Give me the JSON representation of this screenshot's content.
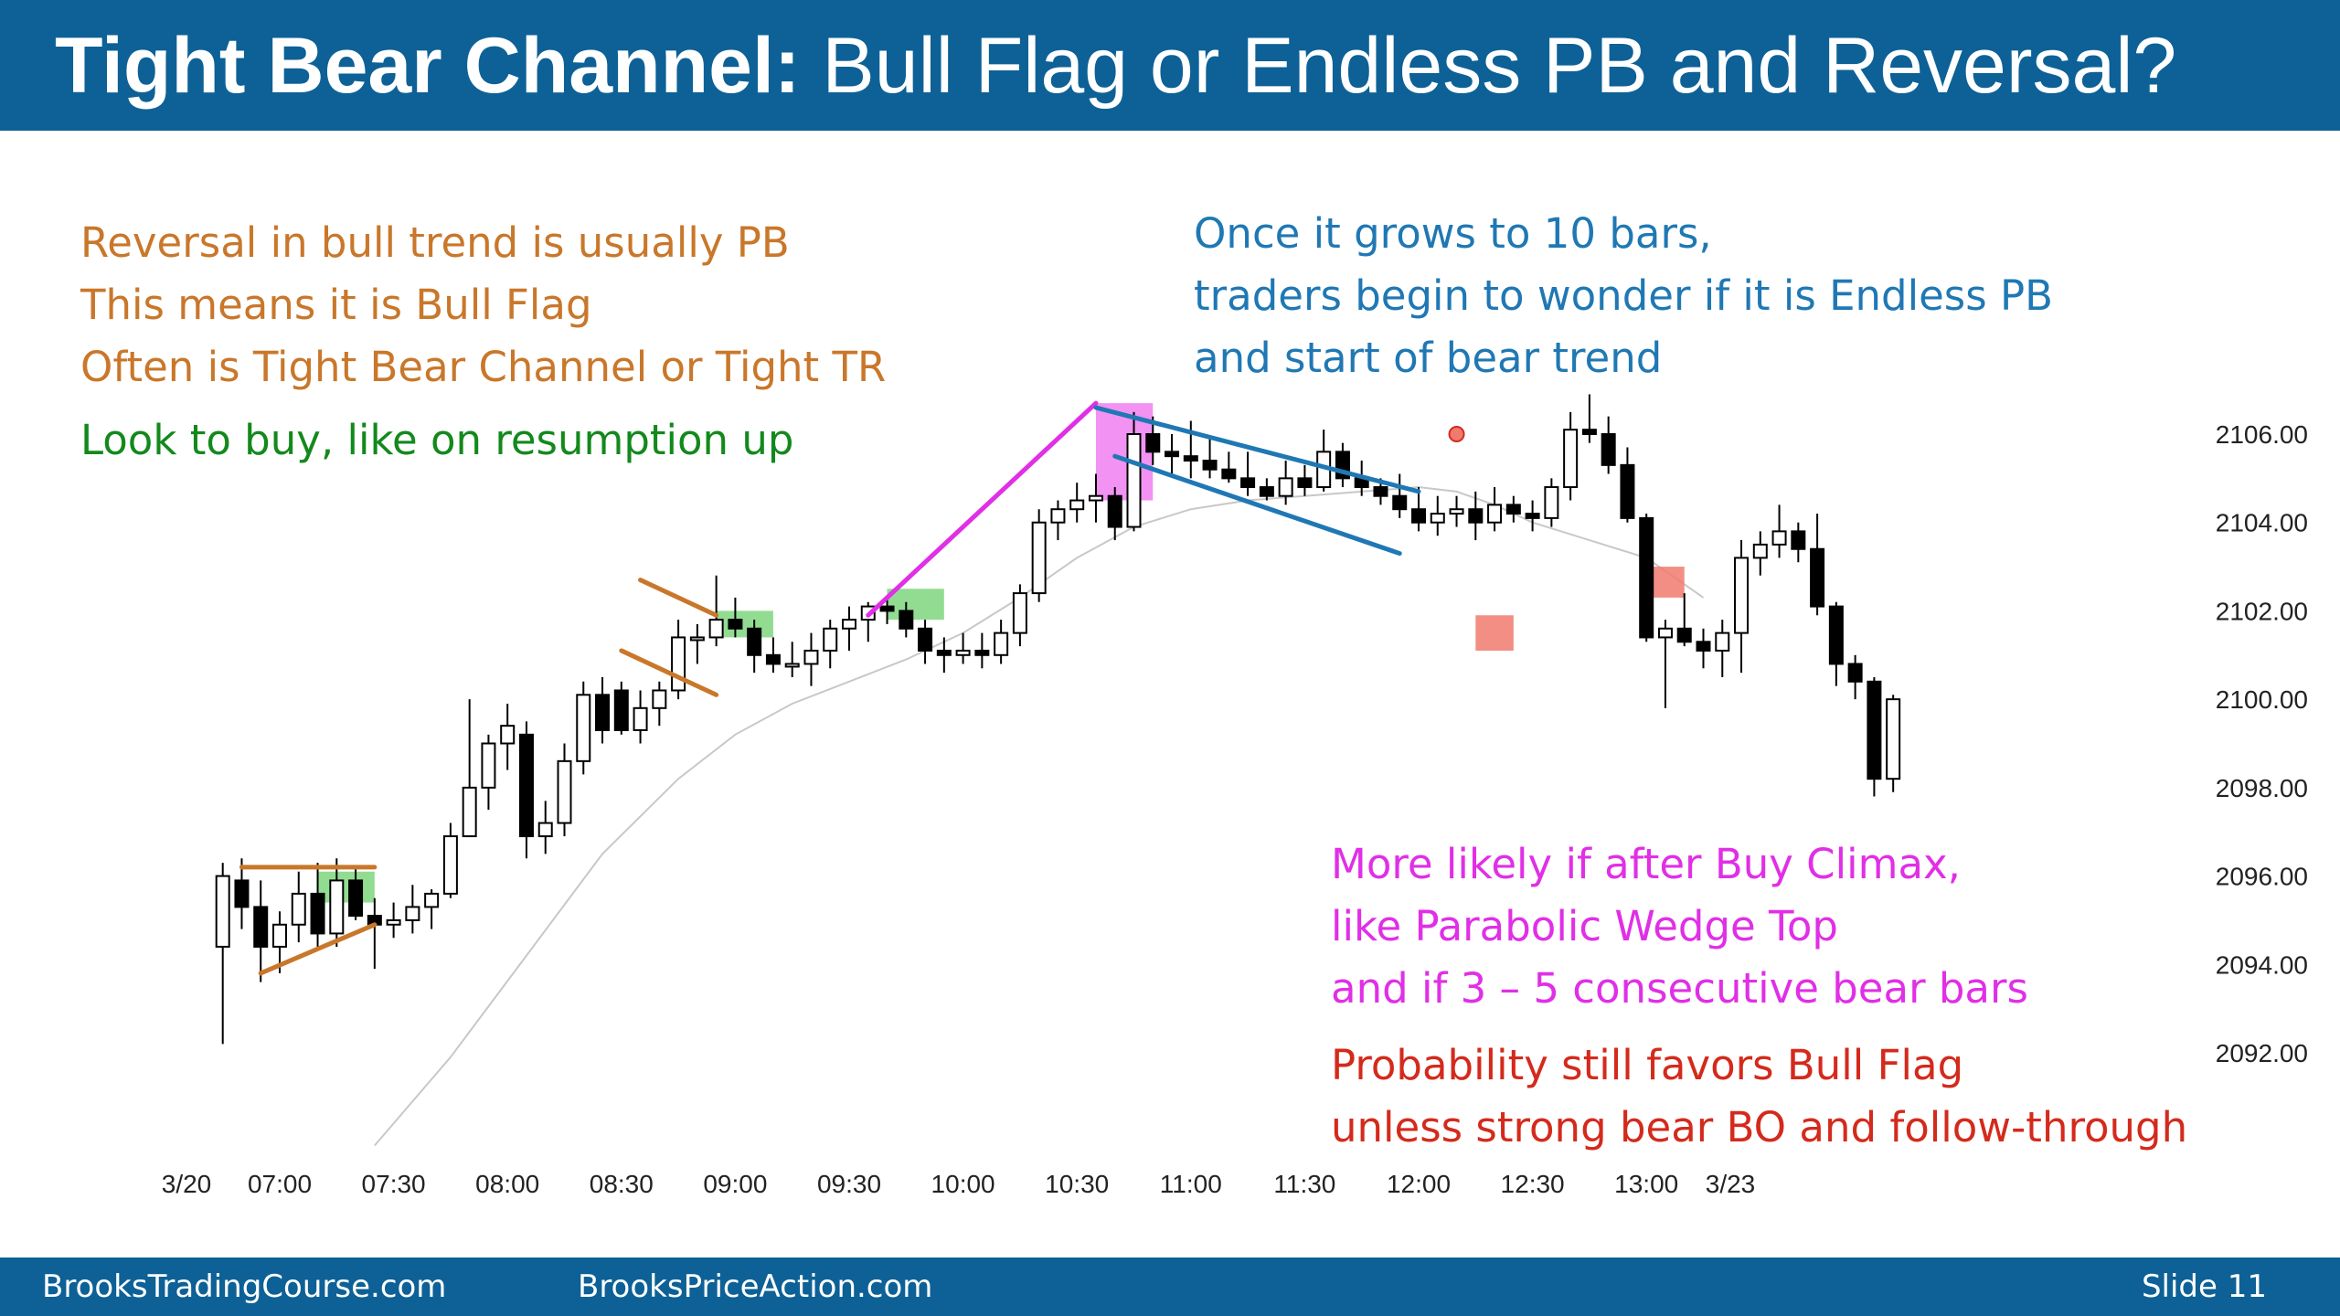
{
  "title": {
    "bold": "Tight Bear Channel:",
    "rest": " Bull Flag or Endless PB and Reversal?"
  },
  "notes": {
    "orange": [
      "Reversal in bull trend is usually PB",
      "This means it is Bull Flag",
      "Often is Tight Bear Channel or Tight TR"
    ],
    "green": "Look to buy, like on resumption up",
    "blue": [
      "Once it grows to 10 bars,",
      "traders begin to wonder if it is Endless PB",
      "and start of bear trend"
    ],
    "magenta": [
      "More likely if after Buy Climax,",
      "like Parabolic Wedge Top",
      "and if 3 – 5 consecutive bear bars"
    ],
    "red": [
      "Probability still favors Bull Flag",
      "unless strong bear BO and follow-through"
    ]
  },
  "footer": {
    "left": "BrooksTradingCourse.com",
    "middle": "BrooksPriceAction.com",
    "right": "Slide  11"
  },
  "colors": {
    "header": "#0d6196",
    "orange": "#c9772a",
    "green": "#13891c",
    "blue": "#1f78b4",
    "magenta": "#e02fe6",
    "red": "#d42a1c",
    "bull_flag_box": "#7fd67f",
    "climax_box": "#f07ff0",
    "bear_box": "#f07a6e"
  },
  "chart_data": {
    "type": "candlestick",
    "y_axis": {
      "ticks": [
        "2106.00",
        "2104.00",
        "2102.00",
        "2100.00",
        "2098.00",
        "2096.00",
        "2094.00",
        "2092.00"
      ],
      "range": [
        2090.8,
        2107.8
      ]
    },
    "x_axis": {
      "ticks": [
        "3/20",
        "07:00",
        "07:30",
        "08:00",
        "08:30",
        "09:00",
        "09:30",
        "10:00",
        "10:30",
        "11:00",
        "11:30",
        "12:00",
        "12:30",
        "13:00",
        "3/23"
      ]
    },
    "bar_interval_min": 5,
    "first_bar_time": "06:45",
    "last_bar_time": "13:20",
    "bars": [
      [
        2094.4,
        2096.3,
        2092.2,
        2096.0
      ],
      [
        2095.9,
        2096.4,
        2094.8,
        2095.3
      ],
      [
        2095.3,
        2095.9,
        2093.6,
        2094.4
      ],
      [
        2094.4,
        2095.2,
        2093.8,
        2094.9
      ],
      [
        2094.9,
        2096.1,
        2094.5,
        2095.6
      ],
      [
        2095.6,
        2096.3,
        2094.4,
        2094.7
      ],
      [
        2094.7,
        2096.4,
        2094.4,
        2095.9
      ],
      [
        2095.9,
        2096.2,
        2095.0,
        2095.1
      ],
      [
        2095.1,
        2095.5,
        2093.9,
        2094.9
      ],
      [
        2094.9,
        2095.4,
        2094.6,
        2095.0
      ],
      [
        2095.0,
        2095.8,
        2094.7,
        2095.3
      ],
      [
        2095.3,
        2095.7,
        2094.8,
        2095.6
      ],
      [
        2095.6,
        2097.2,
        2095.5,
        2096.9
      ],
      [
        2096.9,
        2100.0,
        2096.9,
        2098.0
      ],
      [
        2098.0,
        2099.2,
        2097.5,
        2099.0
      ],
      [
        2099.0,
        2099.9,
        2098.4,
        2099.4
      ],
      [
        2099.2,
        2099.5,
        2096.4,
        2096.9
      ],
      [
        2096.9,
        2097.7,
        2096.5,
        2097.2
      ],
      [
        2097.2,
        2099.0,
        2096.9,
        2098.6
      ],
      [
        2098.6,
        2100.4,
        2098.3,
        2100.1
      ],
      [
        2100.1,
        2100.5,
        2099.0,
        2099.3
      ],
      [
        2100.2,
        2100.4,
        2099.2,
        2099.3
      ],
      [
        2099.3,
        2100.2,
        2099.0,
        2099.8
      ],
      [
        2099.8,
        2100.4,
        2099.4,
        2100.2
      ],
      [
        2100.2,
        2101.8,
        2100.0,
        2101.4
      ],
      [
        2101.4,
        2101.7,
        2100.8,
        2101.4
      ],
      [
        2101.4,
        2102.8,
        2101.2,
        2101.8
      ],
      [
        2101.8,
        2102.3,
        2101.4,
        2101.6
      ],
      [
        2101.6,
        2101.8,
        2100.6,
        2101.0
      ],
      [
        2101.0,
        2101.4,
        2100.6,
        2100.8
      ],
      [
        2100.8,
        2101.3,
        2100.5,
        2100.8
      ],
      [
        2100.8,
        2101.5,
        2100.3,
        2101.1
      ],
      [
        2101.1,
        2101.8,
        2100.7,
        2101.6
      ],
      [
        2101.6,
        2102.1,
        2101.1,
        2101.8
      ],
      [
        2101.8,
        2102.2,
        2101.3,
        2102.1
      ],
      [
        2102.1,
        2102.3,
        2101.7,
        2102.0
      ],
      [
        2102.0,
        2102.2,
        2101.4,
        2101.6
      ],
      [
        2101.6,
        2101.8,
        2100.8,
        2101.1
      ],
      [
        2101.1,
        2101.4,
        2100.6,
        2101.0
      ],
      [
        2101.0,
        2101.5,
        2100.8,
        2101.1
      ],
      [
        2101.1,
        2101.5,
        2100.7,
        2101.0
      ],
      [
        2101.0,
        2101.8,
        2100.8,
        2101.5
      ],
      [
        2101.5,
        2102.6,
        2101.2,
        2102.4
      ],
      [
        2102.4,
        2104.3,
        2102.2,
        2104.0
      ],
      [
        2104.0,
        2104.5,
        2103.6,
        2104.3
      ],
      [
        2104.3,
        2104.9,
        2104.0,
        2104.5
      ],
      [
        2104.5,
        2105.1,
        2104.0,
        2104.6
      ],
      [
        2104.6,
        2104.8,
        2103.6,
        2103.9
      ],
      [
        2103.9,
        2106.5,
        2103.8,
        2106.0
      ],
      [
        2106.0,
        2106.4,
        2105.3,
        2105.6
      ],
      [
        2105.6,
        2106.0,
        2105.1,
        2105.5
      ],
      [
        2105.5,
        2106.3,
        2105.0,
        2105.4
      ],
      [
        2105.4,
        2105.9,
        2105.0,
        2105.2
      ],
      [
        2105.2,
        2105.6,
        2104.9,
        2105.0
      ],
      [
        2105.0,
        2105.6,
        2104.6,
        2104.8
      ],
      [
        2104.8,
        2105.0,
        2104.5,
        2104.6
      ],
      [
        2104.6,
        2105.4,
        2104.4,
        2105.0
      ],
      [
        2105.0,
        2105.3,
        2104.6,
        2104.8
      ],
      [
        2104.8,
        2106.1,
        2104.7,
        2105.6
      ],
      [
        2105.6,
        2105.8,
        2104.8,
        2105.0
      ],
      [
        2105.0,
        2105.4,
        2104.6,
        2104.8
      ],
      [
        2104.8,
        2105.0,
        2104.4,
        2104.6
      ],
      [
        2104.6,
        2105.1,
        2104.1,
        2104.3
      ],
      [
        2104.3,
        2104.8,
        2103.8,
        2104.0
      ],
      [
        2104.0,
        2104.6,
        2103.7,
        2104.2
      ],
      [
        2104.2,
        2104.6,
        2103.9,
        2104.3
      ],
      [
        2104.3,
        2104.7,
        2103.6,
        2104.0
      ],
      [
        2104.0,
        2104.8,
        2103.8,
        2104.4
      ],
      [
        2104.4,
        2104.6,
        2104.0,
        2104.2
      ],
      [
        2104.2,
        2104.5,
        2103.8,
        2104.1
      ],
      [
        2104.1,
        2105.0,
        2103.9,
        2104.8
      ],
      [
        2104.8,
        2106.5,
        2104.5,
        2106.1
      ],
      [
        2106.1,
        2106.9,
        2105.8,
        2106.0
      ],
      [
        2106.0,
        2106.4,
        2105.1,
        2105.3
      ],
      [
        2105.3,
        2105.7,
        2104.0,
        2104.1
      ],
      [
        2104.1,
        2104.2,
        2101.3,
        2101.4
      ],
      [
        2101.4,
        2101.8,
        2099.8,
        2101.6
      ],
      [
        2101.6,
        2102.4,
        2101.2,
        2101.3
      ],
      [
        2101.3,
        2101.6,
        2100.7,
        2101.1
      ],
      [
        2101.1,
        2101.8,
        2100.5,
        2101.5
      ],
      [
        2101.5,
        2103.6,
        2100.6,
        2103.2
      ],
      [
        2103.2,
        2103.8,
        2102.8,
        2103.5
      ],
      [
        2103.5,
        2104.4,
        2103.2,
        2103.8
      ],
      [
        2103.8,
        2104.0,
        2103.1,
        2103.4
      ],
      [
        2103.4,
        2104.2,
        2101.9,
        2102.1
      ],
      [
        2102.1,
        2102.2,
        2100.3,
        2100.8
      ],
      [
        2100.8,
        2101.0,
        2100.0,
        2100.4
      ],
      [
        2100.4,
        2100.5,
        2097.8,
        2098.2
      ],
      [
        2098.2,
        2100.1,
        2097.9,
        2100.0
      ]
    ],
    "moving_average": [
      [
        "07:25",
        2089.9
      ],
      [
        "07:45",
        2091.9
      ],
      [
        "08:05",
        2094.2
      ],
      [
        "08:25",
        2096.5
      ],
      [
        "08:45",
        2098.2
      ],
      [
        "09:00",
        2099.2
      ],
      [
        "09:15",
        2099.9
      ],
      [
        "09:30",
        2100.4
      ],
      [
        "09:45",
        2100.9
      ],
      [
        "10:00",
        2101.5
      ],
      [
        "10:15",
        2102.3
      ],
      [
        "10:30",
        2103.2
      ],
      [
        "10:45",
        2103.9
      ],
      [
        "11:00",
        2104.3
      ],
      [
        "11:15",
        2104.5
      ],
      [
        "11:30",
        2104.6
      ],
      [
        "11:45",
        2104.7
      ],
      [
        "12:00",
        2104.8
      ],
      [
        "12:10",
        2104.7
      ],
      [
        "12:20",
        2104.4
      ],
      [
        "12:30",
        2104.0
      ],
      [
        "12:45",
        2103.6
      ],
      [
        "13:00",
        2103.2
      ],
      [
        "13:15",
        2102.3
      ]
    ],
    "annotations": [
      {
        "kind": "triangle",
        "color": "orange",
        "lines": [
          [
            "06:50",
            2096.2,
            "07:25",
            2096.2
          ],
          [
            "06:55",
            2093.8,
            "07:25",
            2094.9
          ]
        ]
      },
      {
        "kind": "wedge",
        "color": "orange",
        "lines": [
          [
            "08:35",
            2102.7,
            "08:55",
            2101.9
          ],
          [
            "08:30",
            2101.1,
            "08:55",
            2100.1
          ]
        ]
      },
      {
        "kind": "box",
        "color": "bull_flag_box",
        "rect": [
          "07:10",
          2096.1,
          "07:25",
          2095.4
        ]
      },
      {
        "kind": "box",
        "color": "bull_flag_box",
        "rect": [
          "08:55",
          2102.0,
          "09:10",
          2101.4
        ]
      },
      {
        "kind": "box",
        "color": "bull_flag_box",
        "rect": [
          "09:40",
          2102.5,
          "09:55",
          2101.8
        ]
      },
      {
        "kind": "spike",
        "color": "magenta",
        "lines": [
          [
            "09:35",
            2101.9,
            "10:35",
            2106.7
          ]
        ]
      },
      {
        "kind": "box",
        "color": "climax_box",
        "rect": [
          "10:35",
          2106.7,
          "10:50",
          2104.5
        ]
      },
      {
        "kind": "channel",
        "color": "blue",
        "lines": [
          [
            "10:35",
            2106.6,
            "12:00",
            2104.7
          ],
          [
            "10:40",
            2105.5,
            "11:55",
            2103.3
          ]
        ]
      },
      {
        "kind": "box",
        "color": "bear_box",
        "rect": [
          "12:15",
          2101.9,
          "12:25",
          2101.1
        ]
      },
      {
        "kind": "box",
        "color": "bear_box",
        "rect": [
          "13:00",
          2103.0,
          "13:10",
          2102.3
        ]
      },
      {
        "kind": "marker",
        "color": "bear_box",
        "point": [
          "12:10",
          2106.0
        ]
      }
    ]
  }
}
